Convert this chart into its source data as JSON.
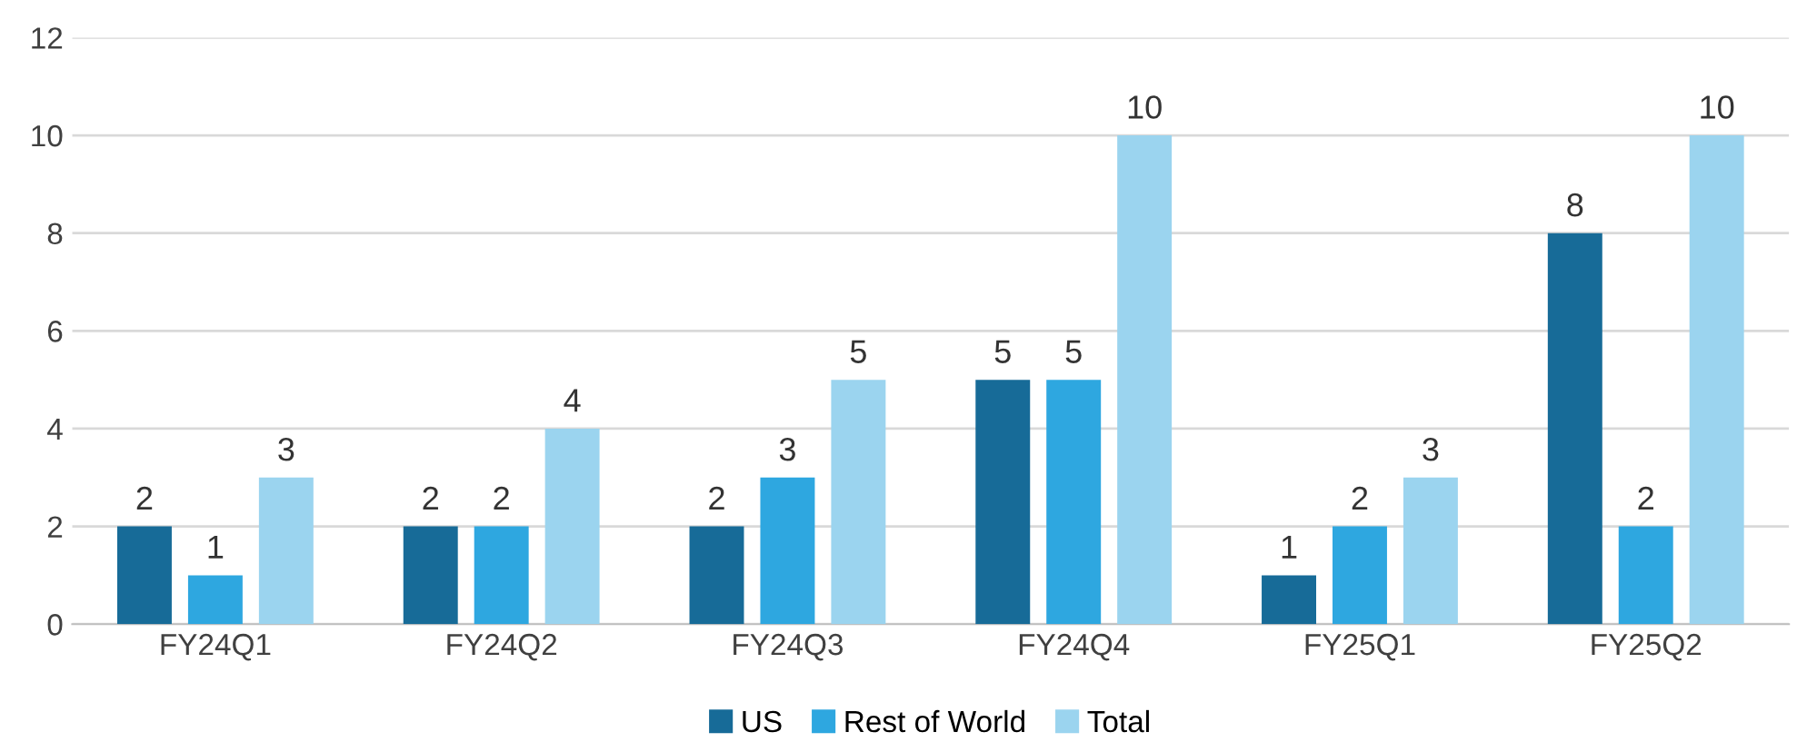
{
  "chart_data": {
    "type": "bar",
    "categories": [
      "FY24Q1",
      "FY24Q2",
      "FY24Q3",
      "FY24Q4",
      "FY25Q1",
      "FY25Q2"
    ],
    "series": [
      {
        "name": "US",
        "color": "#176b98",
        "values": [
          2,
          2,
          2,
          5,
          1,
          8
        ]
      },
      {
        "name": "Rest of World",
        "color": "#2ea7e0",
        "values": [
          1,
          2,
          3,
          5,
          2,
          2
        ]
      },
      {
        "name": "Total",
        "color": "#9bd4ef",
        "values": [
          3,
          4,
          5,
          10,
          3,
          10
        ]
      }
    ],
    "ylim": [
      0,
      12
    ],
    "yticks": [
      0,
      2,
      4,
      6,
      8,
      10,
      12
    ],
    "grid": "y",
    "legend": "bottom",
    "data_labels": true
  }
}
